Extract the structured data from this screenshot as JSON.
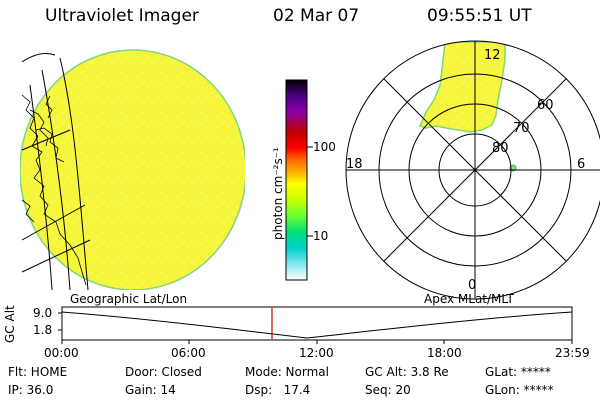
{
  "header": {
    "instrument": "Ultraviolet Imager",
    "date": "02 Mar 07",
    "time": "09:55:51 UT"
  },
  "colorbar": {
    "unit_label": "photon cm⁻²s⁻¹",
    "ticks": [
      "100",
      "10"
    ],
    "colors": [
      "#000000",
      "#4b0082",
      "#8b00a8",
      "#c00000",
      "#ff0000",
      "#ff6a00",
      "#ffb000",
      "#ffff00",
      "#c8ff00",
      "#66ff33",
      "#00e07a",
      "#00d0c8",
      "#80e8f0",
      "#ffffff"
    ]
  },
  "left_panel": {
    "label": "Geographic Lat/Lon",
    "fill_color": "#f5f53a",
    "edge_color": "#7fd67f"
  },
  "right_panel": {
    "label": "Apex MLat/MLT",
    "mlt_labels": {
      "top": "12",
      "left": "18",
      "right": "6",
      "bottom": "0"
    },
    "lat_labels": [
      "60",
      "70",
      "80"
    ]
  },
  "timeline": {
    "axis_label": "GC Alt",
    "y_ticks": [
      "9.0",
      "1.8"
    ],
    "time_labels": [
      "00:00",
      "06:00",
      "12:00",
      "18:00",
      "23:59"
    ],
    "current_time_color": "#cc0000"
  },
  "status": {
    "flt": "Flt: HOME",
    "door": "Door: Closed",
    "mode": "Mode: Normal",
    "gc_alt": "GC Alt: 3.8 Re",
    "glat": "GLat: *****",
    "ip": "IP: 36.0",
    "gain": "Gain: 14",
    "dsp": "Dsp:   17.4",
    "seq": "Seq: 20",
    "glon": "GLon: *****"
  }
}
